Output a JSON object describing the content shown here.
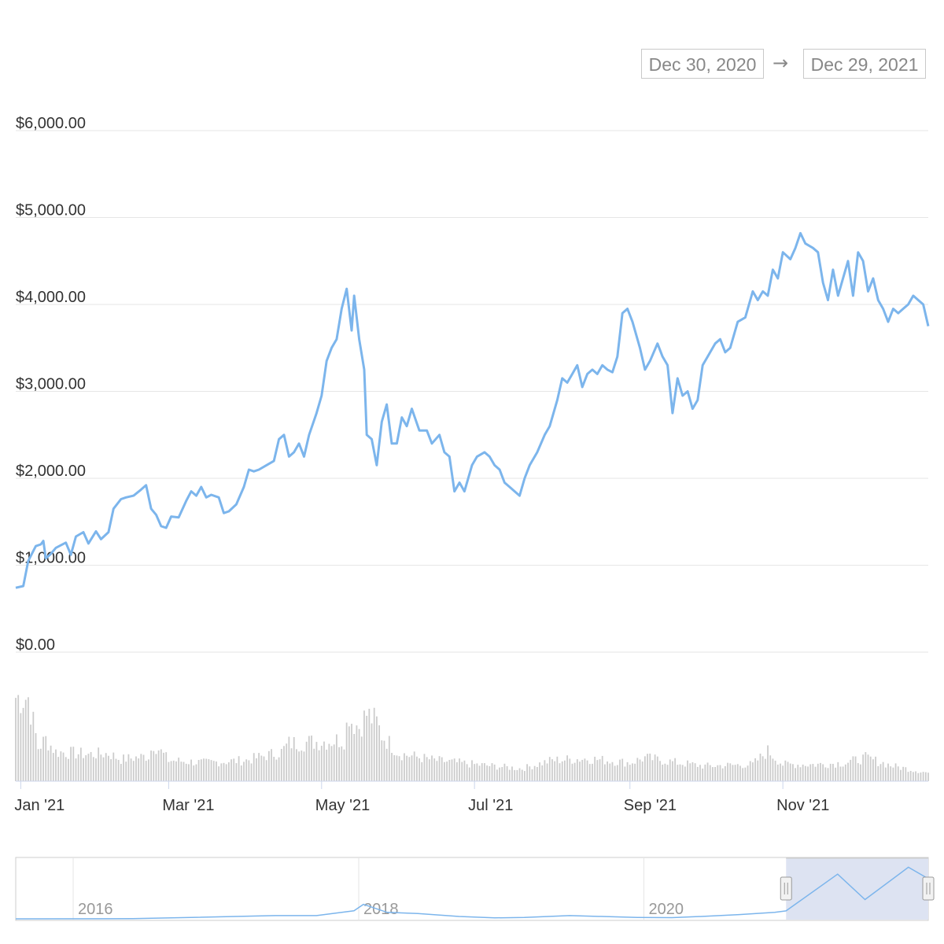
{
  "range_selector": {
    "start": "Dec 30, 2020",
    "arrow": "→",
    "end": "Dec 29, 2021"
  },
  "colors": {
    "line": "#7cb5ec",
    "volume": "#cccccc",
    "grid": "#e6e6e6",
    "navigator_mask": "#dde3f2",
    "axis_text": "#333333",
    "navigator_text": "#999999"
  },
  "chart_data": [
    {
      "type": "line",
      "title": "",
      "xlabel": "",
      "ylabel": "",
      "x_range": [
        "2020-12-30",
        "2021-12-29"
      ],
      "ylim": [
        0,
        6000
      ],
      "y_ticks": [
        "$0.00",
        "$1,000.00",
        "$2,000.00",
        "$3,000.00",
        "$4,000.00",
        "$5,000.00",
        "$6,000.00"
      ],
      "x_ticks": [
        {
          "date": "2021-01-01",
          "label": "Jan '21"
        },
        {
          "date": "2021-03-01",
          "label": "Mar '21"
        },
        {
          "date": "2021-05-01",
          "label": "May '21"
        },
        {
          "date": "2021-07-01",
          "label": "Jul '21"
        },
        {
          "date": "2021-09-01",
          "label": "Sep '21"
        },
        {
          "date": "2021-11-01",
          "label": "Nov '21"
        }
      ],
      "grid": true,
      "series": [
        {
          "values": [
            [
              "2020-12-30",
              740
            ],
            [
              "2021-01-02",
              760
            ],
            [
              "2021-01-04",
              1050
            ],
            [
              "2021-01-07",
              1220
            ],
            [
              "2021-01-09",
              1240
            ],
            [
              "2021-01-10",
              1280
            ],
            [
              "2021-01-11",
              1080
            ],
            [
              "2021-01-13",
              1130
            ],
            [
              "2021-01-15",
              1200
            ],
            [
              "2021-01-17",
              1230
            ],
            [
              "2021-01-19",
              1260
            ],
            [
              "2021-01-21",
              1120
            ],
            [
              "2021-01-23",
              1330
            ],
            [
              "2021-01-26",
              1380
            ],
            [
              "2021-01-28",
              1250
            ],
            [
              "2021-01-31",
              1390
            ],
            [
              "2021-02-02",
              1300
            ],
            [
              "2021-02-05",
              1380
            ],
            [
              "2021-02-07",
              1650
            ],
            [
              "2021-02-10",
              1760
            ],
            [
              "2021-02-12",
              1780
            ],
            [
              "2021-02-15",
              1800
            ],
            [
              "2021-02-18",
              1870
            ],
            [
              "2021-02-20",
              1920
            ],
            [
              "2021-02-22",
              1650
            ],
            [
              "2021-02-24",
              1580
            ],
            [
              "2021-02-26",
              1450
            ],
            [
              "2021-02-28",
              1430
            ],
            [
              "2021-03-02",
              1560
            ],
            [
              "2021-03-05",
              1550
            ],
            [
              "2021-03-08",
              1740
            ],
            [
              "2021-03-10",
              1850
            ],
            [
              "2021-03-12",
              1800
            ],
            [
              "2021-03-14",
              1900
            ],
            [
              "2021-03-16",
              1780
            ],
            [
              "2021-03-18",
              1810
            ],
            [
              "2021-03-21",
              1780
            ],
            [
              "2021-03-23",
              1600
            ],
            [
              "2021-03-25",
              1620
            ],
            [
              "2021-03-28",
              1700
            ],
            [
              "2021-03-31",
              1900
            ],
            [
              "2021-04-02",
              2100
            ],
            [
              "2021-04-04",
              2080
            ],
            [
              "2021-04-06",
              2100
            ],
            [
              "2021-04-09",
              2150
            ],
            [
              "2021-04-12",
              2200
            ],
            [
              "2021-04-14",
              2450
            ],
            [
              "2021-04-16",
              2500
            ],
            [
              "2021-04-18",
              2250
            ],
            [
              "2021-04-20",
              2300
            ],
            [
              "2021-04-22",
              2400
            ],
            [
              "2021-04-24",
              2250
            ],
            [
              "2021-04-26",
              2500
            ],
            [
              "2021-04-29",
              2750
            ],
            [
              "2021-05-01",
              2950
            ],
            [
              "2021-05-03",
              3350
            ],
            [
              "2021-05-05",
              3500
            ],
            [
              "2021-05-07",
              3600
            ],
            [
              "2021-05-09",
              3950
            ],
            [
              "2021-05-11",
              4180
            ],
            [
              "2021-05-13",
              3700
            ],
            [
              "2021-05-14",
              4100
            ],
            [
              "2021-05-16",
              3600
            ],
            [
              "2021-05-18",
              3250
            ],
            [
              "2021-05-19",
              2500
            ],
            [
              "2021-05-21",
              2450
            ],
            [
              "2021-05-23",
              2150
            ],
            [
              "2021-05-25",
              2650
            ],
            [
              "2021-05-27",
              2850
            ],
            [
              "2021-05-29",
              2400
            ],
            [
              "2021-05-31",
              2400
            ],
            [
              "2021-06-02",
              2700
            ],
            [
              "2021-06-04",
              2600
            ],
            [
              "2021-06-06",
              2800
            ],
            [
              "2021-06-09",
              2550
            ],
            [
              "2021-06-12",
              2550
            ],
            [
              "2021-06-14",
              2400
            ],
            [
              "2021-06-17",
              2500
            ],
            [
              "2021-06-19",
              2300
            ],
            [
              "2021-06-21",
              2250
            ],
            [
              "2021-06-23",
              1850
            ],
            [
              "2021-06-25",
              1950
            ],
            [
              "2021-06-27",
              1850
            ],
            [
              "2021-06-30",
              2150
            ],
            [
              "2021-07-02",
              2250
            ],
            [
              "2021-07-05",
              2300
            ],
            [
              "2021-07-07",
              2250
            ],
            [
              "2021-07-09",
              2150
            ],
            [
              "2021-07-11",
              2100
            ],
            [
              "2021-07-13",
              1950
            ],
            [
              "2021-07-15",
              1900
            ],
            [
              "2021-07-17",
              1850
            ],
            [
              "2021-07-19",
              1800
            ],
            [
              "2021-07-21",
              2000
            ],
            [
              "2021-07-23",
              2150
            ],
            [
              "2021-07-26",
              2300
            ],
            [
              "2021-07-29",
              2500
            ],
            [
              "2021-07-31",
              2600
            ],
            [
              "2021-08-03",
              2900
            ],
            [
              "2021-08-05",
              3150
            ],
            [
              "2021-08-07",
              3100
            ],
            [
              "2021-08-09",
              3200
            ],
            [
              "2021-08-11",
              3300
            ],
            [
              "2021-08-13",
              3050
            ],
            [
              "2021-08-15",
              3200
            ],
            [
              "2021-08-17",
              3250
            ],
            [
              "2021-08-19",
              3200
            ],
            [
              "2021-08-21",
              3300
            ],
            [
              "2021-08-23",
              3250
            ],
            [
              "2021-08-25",
              3220
            ],
            [
              "2021-08-27",
              3400
            ],
            [
              "2021-08-29",
              3900
            ],
            [
              "2021-08-31",
              3950
            ],
            [
              "2021-09-02",
              3800
            ],
            [
              "2021-09-05",
              3500
            ],
            [
              "2021-09-07",
              3250
            ],
            [
              "2021-09-09",
              3350
            ],
            [
              "2021-09-12",
              3550
            ],
            [
              "2021-09-14",
              3400
            ],
            [
              "2021-09-16",
              3300
            ],
            [
              "2021-09-18",
              2750
            ],
            [
              "2021-09-20",
              3150
            ],
            [
              "2021-09-22",
              2950
            ],
            [
              "2021-09-24",
              3000
            ],
            [
              "2021-09-26",
              2800
            ],
            [
              "2021-09-28",
              2900
            ],
            [
              "2021-09-30",
              3300
            ],
            [
              "2021-10-02",
              3400
            ],
            [
              "2021-10-05",
              3550
            ],
            [
              "2021-10-07",
              3600
            ],
            [
              "2021-10-09",
              3450
            ],
            [
              "2021-10-11",
              3500
            ],
            [
              "2021-10-14",
              3800
            ],
            [
              "2021-10-17",
              3850
            ],
            [
              "2021-10-20",
              4150
            ],
            [
              "2021-10-22",
              4050
            ],
            [
              "2021-10-24",
              4150
            ],
            [
              "2021-10-26",
              4100
            ],
            [
              "2021-10-28",
              4400
            ],
            [
              "2021-10-30",
              4300
            ],
            [
              "2021-11-01",
              4600
            ],
            [
              "2021-11-04",
              4520
            ],
            [
              "2021-11-06",
              4650
            ],
            [
              "2021-11-08",
              4820
            ],
            [
              "2021-11-10",
              4700
            ],
            [
              "2021-11-13",
              4650
            ],
            [
              "2021-11-15",
              4600
            ],
            [
              "2021-11-17",
              4250
            ],
            [
              "2021-11-19",
              4050
            ],
            [
              "2021-11-21",
              4400
            ],
            [
              "2021-11-23",
              4100
            ],
            [
              "2021-11-25",
              4300
            ],
            [
              "2021-11-27",
              4500
            ],
            [
              "2021-11-29",
              4100
            ],
            [
              "2021-12-01",
              4600
            ],
            [
              "2021-12-03",
              4500
            ],
            [
              "2021-12-05",
              4150
            ],
            [
              "2021-12-07",
              4300
            ],
            [
              "2021-12-09",
              4050
            ],
            [
              "2021-12-11",
              3950
            ],
            [
              "2021-12-13",
              3800
            ],
            [
              "2021-12-15",
              3950
            ],
            [
              "2021-12-17",
              3900
            ],
            [
              "2021-12-19",
              3950
            ],
            [
              "2021-12-21",
              4000
            ],
            [
              "2021-12-23",
              4100
            ],
            [
              "2021-12-25",
              4050
            ],
            [
              "2021-12-27",
              4000
            ],
            [
              "2021-12-29",
              3750
            ]
          ]
        }
      ]
    },
    {
      "type": "bar",
      "title": "",
      "series": [
        {
          "values": [
            [
              "2021-01-04",
              1.0
            ],
            [
              "2021-01-08",
              0.4
            ],
            [
              "2021-01-11",
              0.5
            ],
            [
              "2021-01-15",
              0.35
            ],
            [
              "2021-01-20",
              0.34
            ],
            [
              "2021-01-28",
              0.32
            ],
            [
              "2021-02-05",
              0.33
            ],
            [
              "2021-02-10",
              0.26
            ],
            [
              "2021-02-21",
              0.3
            ],
            [
              "2021-02-23",
              0.45
            ],
            [
              "2021-03-01",
              0.25
            ],
            [
              "2021-03-15",
              0.22
            ],
            [
              "2021-04-01",
              0.25
            ],
            [
              "2021-04-15",
              0.35
            ],
            [
              "2021-04-18",
              0.45
            ],
            [
              "2021-05-04",
              0.48
            ],
            [
              "2021-05-10",
              0.5
            ],
            [
              "2021-05-12",
              0.82
            ],
            [
              "2021-05-13",
              0.72
            ],
            [
              "2021-05-16",
              0.65
            ],
            [
              "2021-05-19",
              0.8
            ],
            [
              "2021-05-21",
              0.75
            ],
            [
              "2021-05-23",
              0.7
            ],
            [
              "2021-05-25",
              0.55
            ],
            [
              "2021-06-01",
              0.33
            ],
            [
              "2021-06-15",
              0.25
            ],
            [
              "2021-07-01",
              0.2
            ],
            [
              "2021-07-20",
              0.15
            ],
            [
              "2021-08-01",
              0.25
            ],
            [
              "2021-08-15",
              0.27
            ],
            [
              "2021-09-01",
              0.22
            ],
            [
              "2021-09-07",
              0.28
            ],
            [
              "2021-09-20",
              0.22
            ],
            [
              "2021-10-01",
              0.18
            ],
            [
              "2021-10-20",
              0.2
            ],
            [
              "2021-10-26",
              0.36
            ],
            [
              "2021-11-01",
              0.2
            ],
            [
              "2021-11-15",
              0.2
            ],
            [
              "2021-11-26",
              0.22
            ],
            [
              "2021-12-04",
              0.28
            ],
            [
              "2021-12-15",
              0.18
            ],
            [
              "2021-12-29",
              0.1
            ]
          ]
        }
      ]
    },
    {
      "type": "area",
      "title": "",
      "x_ticks": [
        "2016",
        "2018",
        "2020"
      ],
      "selected_range": [
        "2020-12-30",
        "2021-12-29"
      ],
      "series": [
        {
          "values": [
            [
              "2015-08-07",
              3
            ],
            [
              "2016-06-01",
              12
            ],
            [
              "2017-06-01",
              300
            ],
            [
              "2017-09-15",
              300
            ],
            [
              "2017-12-20",
              750
            ],
            [
              "2018-01-13",
              1350
            ],
            [
              "2018-03-15",
              600
            ],
            [
              "2018-06-01",
              500
            ],
            [
              "2018-09-15",
              220
            ],
            [
              "2018-12-15",
              90
            ],
            [
              "2019-03-01",
              135
            ],
            [
              "2019-06-25",
              300
            ],
            [
              "2019-12-15",
              130
            ],
            [
              "2020-03-13",
              110
            ],
            [
              "2020-06-01",
              230
            ],
            [
              "2020-09-01",
              400
            ],
            [
              "2020-12-01",
              600
            ],
            [
              "2020-12-30",
              740
            ],
            [
              "2021-05-11",
              4180
            ],
            [
              "2021-07-20",
              1800
            ],
            [
              "2021-11-08",
              4820
            ],
            [
              "2021-12-29",
              3750
            ]
          ]
        }
      ]
    }
  ]
}
